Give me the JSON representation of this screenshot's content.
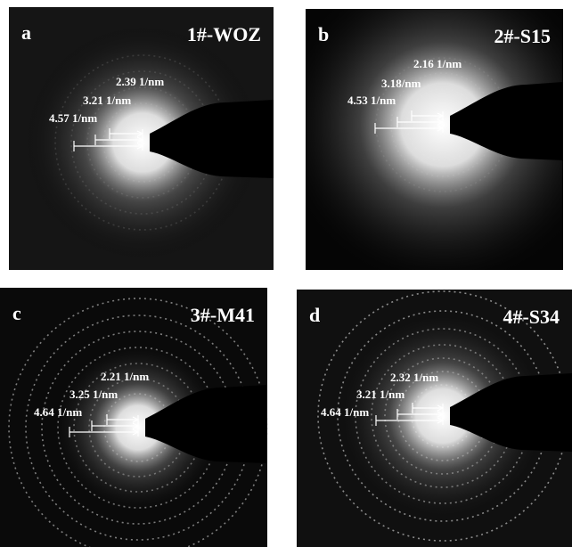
{
  "panels": [
    {
      "letter": "a",
      "label": "1#-WOZ",
      "annotations": [
        "2.39 1/nm",
        "3.21 1/nm",
        "4.57 1/nm"
      ]
    },
    {
      "letter": "b",
      "label": "2#-S15",
      "annotations": [
        "2.16 1/nm",
        "3.18/nm",
        "4.53 1/nm"
      ]
    },
    {
      "letter": "c",
      "label": "3#-M41",
      "annotations": [
        "2.21 1/nm",
        "3.25 1/nm",
        "4.64 1/nm"
      ]
    },
    {
      "letter": "d",
      "label": "4#-S34",
      "annotations": [
        "2.32 1/nm",
        "3.21 1/nm",
        "4.64 1/nm"
      ]
    }
  ]
}
